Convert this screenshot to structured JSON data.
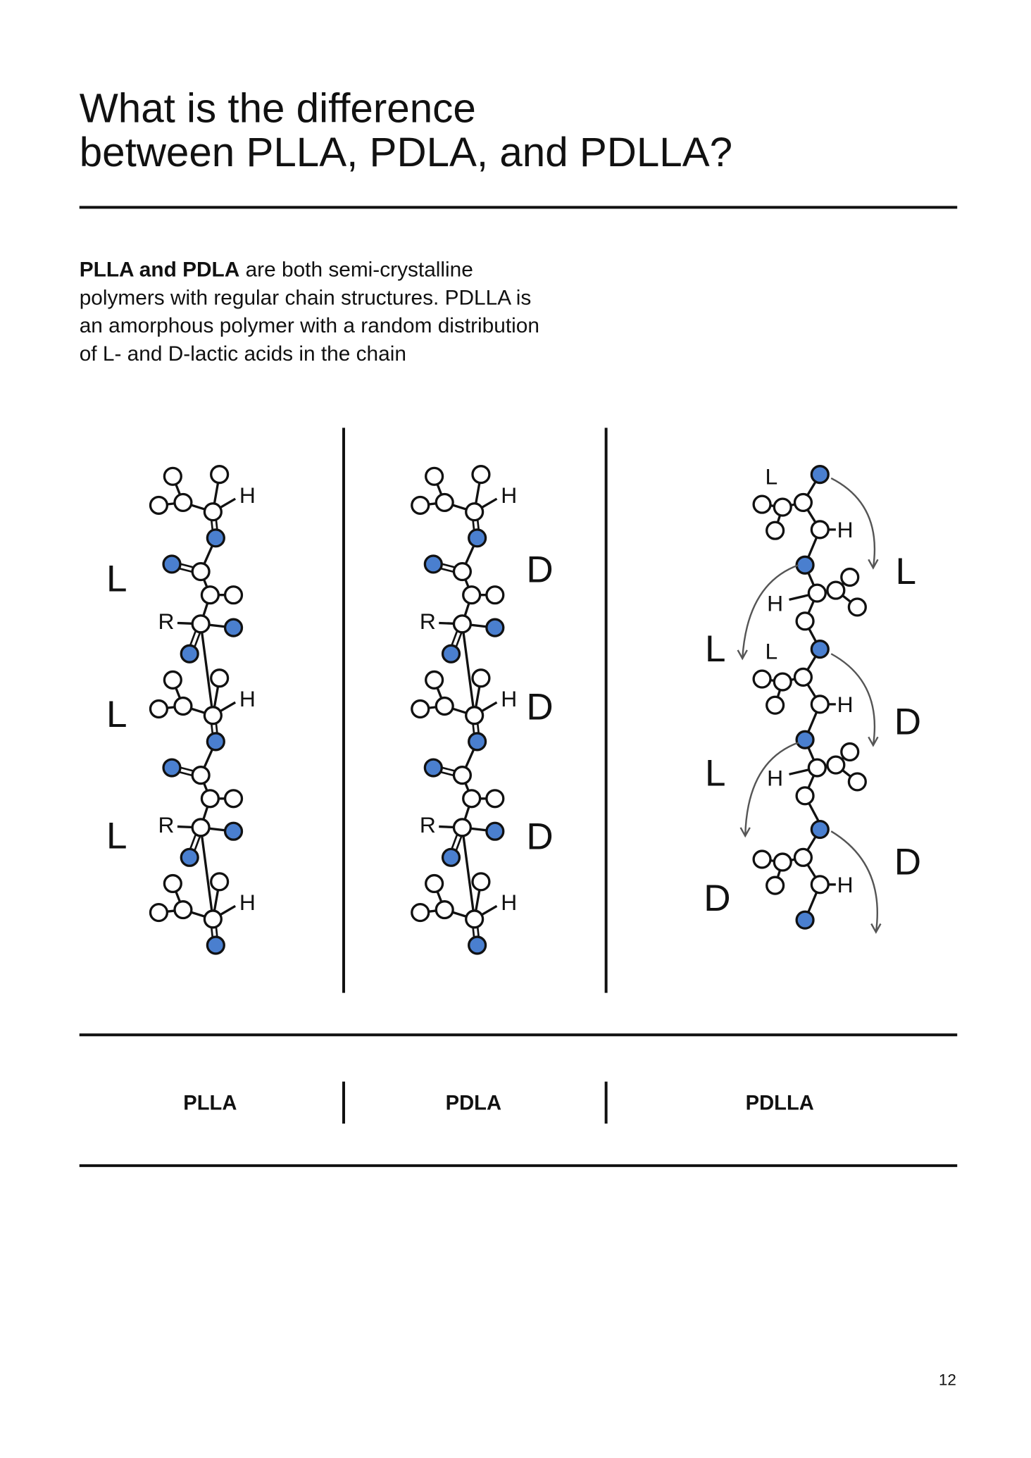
{
  "header": {
    "title": [
      "What is the difference",
      "between PLLA, PDLA, and PDLLA?"
    ]
  },
  "intro": {
    "lead": "PLLA and PDLA",
    "lines": [
      "are both semi-crystalline",
      "polymers with regular chain structures. PDLLA is",
      "an amorphous polymer with a random distribution",
      "of L- and D-lactic acids in the chain"
    ]
  },
  "diagrams": [
    {
      "name": "PLLA",
      "stereo": [
        "L",
        "L",
        "L"
      ],
      "atoms": [
        "H",
        "R",
        "H",
        "R",
        "H"
      ]
    },
    {
      "name": "PDLA",
      "stereo": [
        "D",
        "D",
        "D"
      ],
      "atoms": [
        "H",
        "R",
        "H",
        "R",
        "H"
      ]
    },
    {
      "name": "PDLLA",
      "stereo": [
        "L",
        "L",
        "D",
        "L",
        "D",
        "D"
      ],
      "atoms": [
        "L",
        "H",
        "H",
        "L",
        "H",
        "H",
        "H"
      ]
    }
  ],
  "page_number": "12"
}
